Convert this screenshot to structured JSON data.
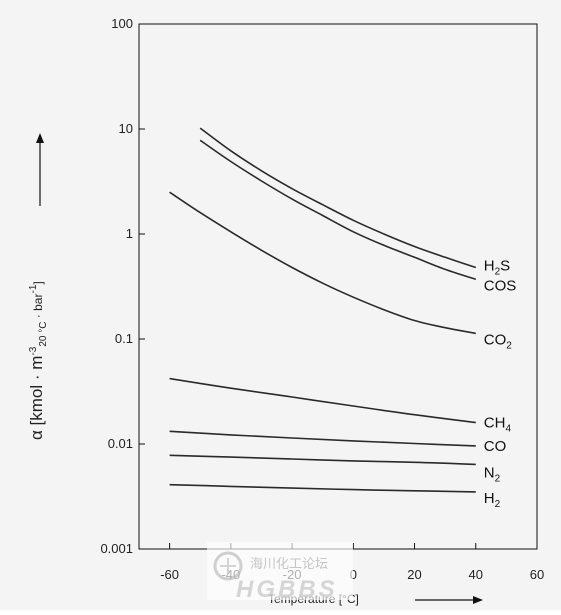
{
  "chart_data": {
    "type": "line",
    "xlabel": "Temperature [°C]",
    "ylabel": "α [kmol · m",
    "ylabel_sup": "-3",
    "ylabel_sub": "20 °C",
    "ylabel_tail": " · bar",
    "ylabel_tail_sup": "-1",
    "ylabel_end": "]",
    "xlim": [
      -70,
      60
    ],
    "ylim": [
      0.001,
      100
    ],
    "y_scale": "log",
    "grid": false,
    "x_ticks": [
      -60,
      -40,
      -20,
      0,
      20,
      40,
      60
    ],
    "x_tick_labels": [
      "-60",
      "-40",
      "-20",
      "0",
      "20",
      "40",
      "60"
    ],
    "y_ticks": [
      0.001,
      0.01,
      0.1,
      1,
      10,
      100
    ],
    "y_tick_labels": [
      "0.001",
      "0.01",
      "0.1",
      "1",
      "10",
      "100"
    ],
    "series": [
      {
        "name": "H2S",
        "label_main": "H",
        "label_sub": "2",
        "label_end": "S",
        "x": [
          -50,
          -40,
          -30,
          -20,
          -10,
          0,
          10,
          20,
          30,
          40
        ],
        "values": [
          10.2,
          6.2,
          4.0,
          2.7,
          1.9,
          1.35,
          1.0,
          0.76,
          0.6,
          0.48
        ]
      },
      {
        "name": "COS",
        "label_main": "COS",
        "label_sub": "",
        "label_end": "",
        "x": [
          -50,
          -40,
          -30,
          -20,
          -10,
          0,
          10,
          20,
          30,
          40
        ],
        "values": [
          7.8,
          4.9,
          3.2,
          2.15,
          1.5,
          1.05,
          0.78,
          0.6,
          0.46,
          0.37
        ]
      },
      {
        "name": "CO2",
        "label_main": "CO",
        "label_sub": "2",
        "label_end": "",
        "x": [
          -60,
          -50,
          -40,
          -30,
          -20,
          -10,
          0,
          10,
          20,
          30,
          40
        ],
        "values": [
          2.5,
          1.6,
          1.05,
          0.7,
          0.48,
          0.34,
          0.25,
          0.19,
          0.15,
          0.128,
          0.113
        ]
      },
      {
        "name": "CH4",
        "label_main": "CH",
        "label_sub": "4",
        "label_end": "",
        "x": [
          -60,
          -40,
          -20,
          0,
          20,
          40
        ],
        "values": [
          0.042,
          0.034,
          0.028,
          0.023,
          0.019,
          0.016
        ]
      },
      {
        "name": "CO",
        "label_main": "CO",
        "label_sub": "",
        "label_end": "",
        "x": [
          -60,
          -40,
          -20,
          0,
          20,
          40
        ],
        "values": [
          0.0132,
          0.0122,
          0.0114,
          0.0107,
          0.0101,
          0.0096
        ]
      },
      {
        "name": "N2",
        "label_main": "N",
        "label_sub": "2",
        "label_end": "",
        "x": [
          -60,
          -40,
          -20,
          0,
          20,
          40
        ],
        "values": [
          0.0078,
          0.0075,
          0.0072,
          0.0069,
          0.0067,
          0.0064
        ]
      },
      {
        "name": "H2",
        "label_main": "H",
        "label_sub": "2",
        "label_end": "",
        "x": [
          -60,
          -40,
          -20,
          0,
          20,
          40
        ],
        "values": [
          0.0041,
          0.00395,
          0.0038,
          0.00368,
          0.00358,
          0.0035
        ]
      }
    ]
  },
  "watermark": {
    "line1": "海川化工论坛",
    "line2": "HGBBS"
  },
  "colors": {
    "line": "#2a2a2a",
    "axis": "#111111",
    "plot_background": "#f4f4f4"
  }
}
